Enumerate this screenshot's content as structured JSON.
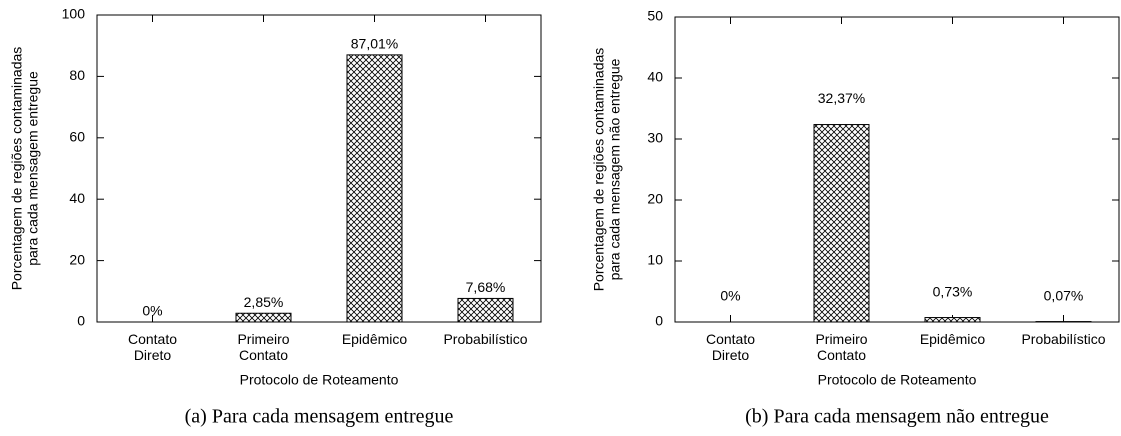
{
  "chart_data": [
    {
      "type": "bar",
      "caption": "(a) Para cada mensagem entregue",
      "ylabel": [
        "Porcentagem de regiões contaminadas",
        "para cada mensagem entregue"
      ],
      "xlabel": "Protocolo de Roteamento",
      "categories": [
        "Contato Direto",
        "Primeiro Contato",
        "Epidêmico",
        "Probabilístico"
      ],
      "values": [
        0,
        2.85,
        87.01,
        7.68
      ],
      "value_labels": [
        "0%",
        "2,85%",
        "87,01%",
        "7,68%"
      ],
      "ylim": [
        0,
        100
      ],
      "yticks": [
        0,
        20,
        40,
        60,
        80,
        100
      ],
      "color": "#000000"
    },
    {
      "type": "bar",
      "caption": "(b) Para cada mensagem não entregue",
      "ylabel": [
        "Porcentagem de regiões contaminadas",
        "para cada mensagem não entregue"
      ],
      "xlabel": "Protocolo de Roteamento",
      "categories": [
        "Contato Direto",
        "Primeiro Contato",
        "Epidêmico",
        "Probabilístico"
      ],
      "values": [
        0,
        32.37,
        0.73,
        0.07
      ],
      "value_labels": [
        "0%",
        "32,37%",
        "0,73%",
        "0,07%"
      ],
      "ylim": [
        0,
        50
      ],
      "yticks": [
        0,
        10,
        20,
        30,
        40,
        50
      ],
      "color": "#000000"
    }
  ]
}
